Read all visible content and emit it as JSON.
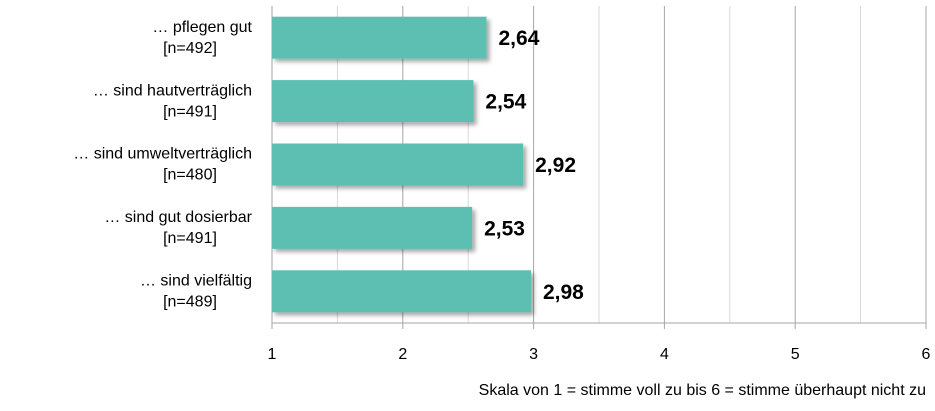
{
  "chart_data": {
    "type": "bar",
    "orientation": "horizontal",
    "categories": [
      [
        "… pflegen gut",
        "[n=492]"
      ],
      [
        "… sind hautverträglich",
        "[n=491]"
      ],
      [
        "… sind umweltverträglich",
        "[n=480]"
      ],
      [
        "… sind gut dosierbar",
        "[n=491]"
      ],
      [
        "… sind vielfältig",
        "[n=489]"
      ]
    ],
    "values": [
      2.64,
      2.54,
      2.92,
      2.53,
      2.98
    ],
    "value_labels": [
      "2,64",
      "2,54",
      "2,92",
      "2,53",
      "2,98"
    ],
    "color": "#5dbfb1",
    "xlim": [
      1,
      6
    ],
    "xticks": [
      1,
      2,
      3,
      4,
      5,
      6
    ],
    "minor_xticks": [
      1.5,
      2.5,
      3.5,
      4.5,
      5.5
    ],
    "grid": true,
    "note": "Skala von 1 = stimme voll zu bis 6 = stimme überhaupt nicht zu"
  }
}
